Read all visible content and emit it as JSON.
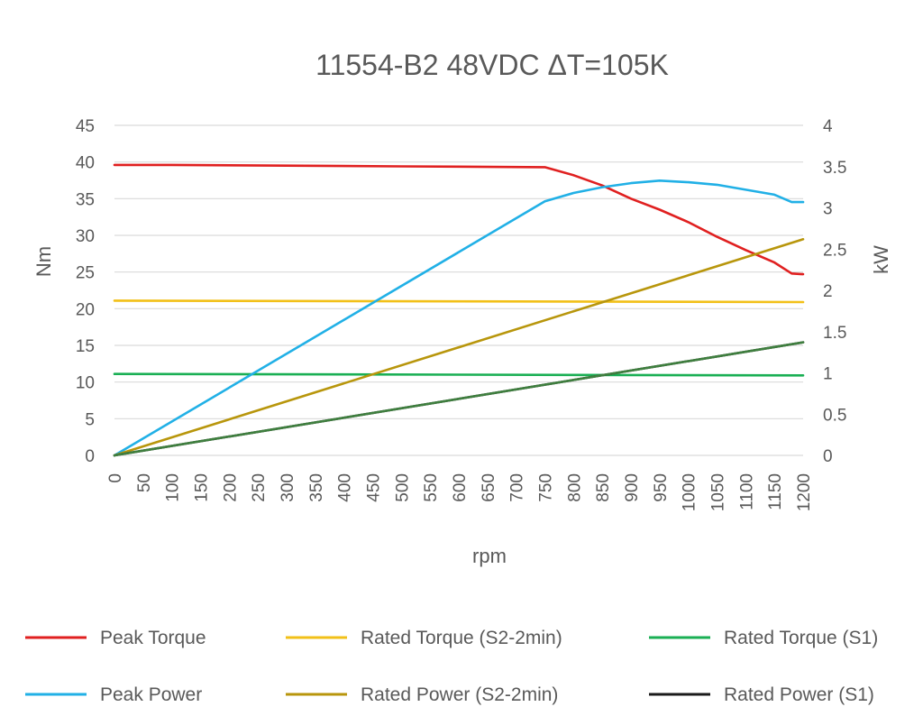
{
  "chart_data": {
    "type": "line",
    "title": "11554-B2 48VDC ΔT=105K",
    "xlabel": "rpm",
    "ylabel_left": "Nm",
    "ylabel_right": "kW",
    "xlim": [
      0,
      1200
    ],
    "ylim_left": [
      0,
      45
    ],
    "ylim_right": [
      0,
      4
    ],
    "x_ticks": [
      "0",
      "50",
      "100",
      "150",
      "200",
      "250",
      "300",
      "350",
      "400",
      "450",
      "500",
      "550",
      "600",
      "650",
      "700",
      "750",
      "800",
      "850",
      "900",
      "950",
      "1000",
      "1050",
      "1100",
      "1150",
      "1200"
    ],
    "y_left_ticks": [
      "0",
      "5",
      "10",
      "15",
      "20",
      "25",
      "30",
      "35",
      "40",
      "45"
    ],
    "y_right_ticks": [
      "0",
      "0.5",
      "1",
      "1.5",
      "2",
      "2.5",
      "3",
      "3.5",
      "4"
    ],
    "grid": "horizontal",
    "legend_position": "bottom",
    "series": [
      {
        "name": "Peak Torque",
        "axis": "left",
        "color": "#e02020",
        "points": [
          [
            0,
            39.6
          ],
          [
            100,
            39.6
          ],
          [
            300,
            39.5
          ],
          [
            500,
            39.4
          ],
          [
            750,
            39.3
          ],
          [
            800,
            38.2
          ],
          [
            850,
            36.8
          ],
          [
            900,
            35.0
          ],
          [
            950,
            33.5
          ],
          [
            1000,
            31.8
          ],
          [
            1050,
            29.8
          ],
          [
            1100,
            28.0
          ],
          [
            1150,
            26.3
          ],
          [
            1180,
            24.8
          ],
          [
            1200,
            24.7
          ]
        ]
      },
      {
        "name": "Rated Torque (S2-2min)",
        "axis": "left",
        "color": "#f2c018",
        "points": [
          [
            0,
            21.1
          ],
          [
            600,
            21.0
          ],
          [
            1200,
            20.9
          ]
        ]
      },
      {
        "name": "Rated Torque (S1)",
        "axis": "left",
        "color": "#1aaf54",
        "points": [
          [
            0,
            11.1
          ],
          [
            600,
            11.0
          ],
          [
            1200,
            10.9
          ]
        ]
      },
      {
        "name": "Peak Power",
        "axis": "right",
        "color": "#21b0e6",
        "points": [
          [
            0,
            0
          ],
          [
            750,
            3.08
          ],
          [
            800,
            3.18
          ],
          [
            850,
            3.25
          ],
          [
            900,
            3.3
          ],
          [
            950,
            3.33
          ],
          [
            1000,
            3.31
          ],
          [
            1050,
            3.28
          ],
          [
            1100,
            3.22
          ],
          [
            1150,
            3.16
          ],
          [
            1180,
            3.07
          ],
          [
            1200,
            3.07
          ]
        ]
      },
      {
        "name": "Rated Power (S2-2min)",
        "axis": "right",
        "color": "#b8960c",
        "points": [
          [
            0,
            0
          ],
          [
            1200,
            2.62
          ]
        ]
      },
      {
        "name": "Rated Power (S1)",
        "axis": "right",
        "color": "#1a1a1a",
        "points": [
          [
            0,
            0
          ],
          [
            1200,
            1.37
          ]
        ]
      }
    ]
  },
  "colors": {
    "grid": "#d9d9d9",
    "text": "#595959",
    "rated_power_s1_overlay": "#3f7f3f"
  }
}
